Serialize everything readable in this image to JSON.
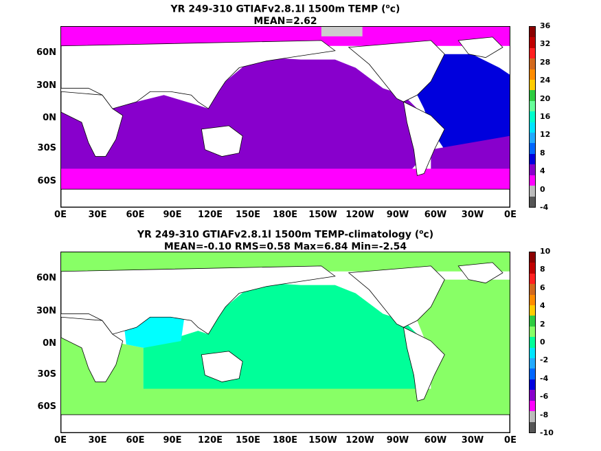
{
  "panels": [
    {
      "title_line1_pre": "YR 249-310 GTIAFv2.8.1l 1500m TEMP (",
      "title_unit_sup": "o",
      "title_line1_post": "c)",
      "title_line2": "MEAN=2.62",
      "colorbar_labels": [
        "36",
        "32",
        "28",
        "24",
        "20",
        "16",
        "12",
        "8",
        "4",
        "0",
        "-4"
      ],
      "colorbar_colors": [
        "#8b0000",
        "#c00000",
        "#ff2020",
        "#d2691e",
        "#ff8c00",
        "#ffcc00",
        "#2ecc40",
        "#66ff99",
        "#00ffcc",
        "#00e5ff",
        "#22aaff",
        "#0066ff",
        "#0000dd",
        "#8800cc",
        "#ff00ff",
        "#bbbbbb",
        "#555555"
      ],
      "field_colors": {
        "ocean_main": "#8800cc",
        "southern": "#ff00ff",
        "atlantic": "#0000dd",
        "ice": "#cccccc"
      }
    },
    {
      "title_line1_pre": "YR 249-310 GTIAFv2.8.1l 1500m TEMP-climatology (",
      "title_unit_sup": "o",
      "title_line1_post": "c)",
      "title_line2": "MEAN=-0.10   RMS=0.58   Max=6.84   Min=-2.54",
      "colorbar_labels": [
        "10",
        "8",
        "6",
        "4",
        "2",
        "0",
        "-2",
        "-4",
        "-6",
        "-8",
        "-10"
      ],
      "colorbar_colors": [
        "#8b0000",
        "#c00000",
        "#ff2020",
        "#d2691e",
        "#ff8c00",
        "#ffcc00",
        "#2ecc40",
        "#88ff66",
        "#00ff99",
        "#00e5ff",
        "#22aaff",
        "#0066ff",
        "#0000dd",
        "#8800cc",
        "#ff00ff",
        "#bbbbbb",
        "#555555"
      ],
      "field_colors": {
        "ocean_main": "#00ff99",
        "southern": "#88ff66",
        "atlantic": "#88ff66",
        "indian": "#00ffff"
      }
    }
  ],
  "lat_labels": [
    "60N",
    "30N",
    "0N",
    "30S",
    "60S"
  ],
  "lon_labels": [
    "0E",
    "30E",
    "60E",
    "90E",
    "120E",
    "150E",
    "180E",
    "150W",
    "120W",
    "90W",
    "60W",
    "30W",
    "0E"
  ]
}
